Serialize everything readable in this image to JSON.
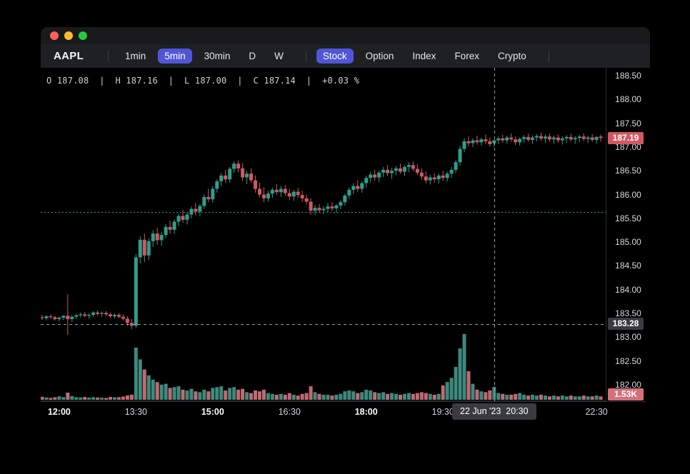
{
  "toolbar": {
    "symbol": "AAPL",
    "timeframes": [
      "1min",
      "5min",
      "30min",
      "D",
      "W"
    ],
    "active_timeframe": "5min",
    "markets": [
      "Stock",
      "Option",
      "Index",
      "Forex",
      "Crypto"
    ],
    "active_market": "Stock",
    "accent_color": "#5056d6"
  },
  "ohlc_bar": {
    "open_label": "O",
    "open": "187.08",
    "high_label": "H",
    "high": "187.16",
    "low_label": "L",
    "low": "187.00",
    "close_label": "C",
    "close": "187.14",
    "change_pct": "+0.03 %"
  },
  "price_axis": {
    "ticks": [
      "188.50",
      "188.00",
      "187.50",
      "187.00",
      "186.50",
      "186.00",
      "185.50",
      "185.00",
      "184.50",
      "184.00",
      "183.50",
      "183.00",
      "182.50",
      "182.00"
    ],
    "last_price_badge": {
      "value": "187.19",
      "color": "#d15862"
    },
    "crosshair_badge": {
      "value": "183.28",
      "color": "#3a3b40"
    },
    "volume_badge": {
      "value": "1.53K",
      "color": "#d3707a"
    }
  },
  "time_axis": {
    "ticks": [
      {
        "label": "12:00",
        "index": 4,
        "bold": true
      },
      {
        "label": "13:30",
        "index": 22,
        "bold": false
      },
      {
        "label": "15:00",
        "index": 40,
        "bold": true
      },
      {
        "label": "16:30",
        "index": 58,
        "bold": false
      },
      {
        "label": "18:00",
        "index": 76,
        "bold": true
      },
      {
        "label": "19:30",
        "index": 94,
        "bold": false
      },
      {
        "label": "22:30",
        "index": 130,
        "bold": false
      }
    ],
    "crosshair_badge": "22 Jun '23  20:30"
  },
  "chart_data": {
    "type": "candlestick_with_volume",
    "symbol": "AAPL",
    "interval": "5min",
    "title": "AAPL 5min candlestick chart, 22 Jun '23",
    "start_time": "11:40",
    "step_minutes": 5,
    "yaxis": {
      "min": 182.0,
      "max": 188.5,
      "tick_step": 0.5
    },
    "volume_axis_max_k": 7.8,
    "colors": {
      "up": "#2f9e8c",
      "down": "#d15862",
      "volume_up": "#3e8a7d",
      "volume_down": "#c06a72",
      "prev_close_line": "#2f9e8c",
      "crosshair": "#9aa0a6"
    },
    "prev_close_line_price": 185.63,
    "last_price": 187.19,
    "crosshair": {
      "index": 106,
      "time": "20:30",
      "price": 183.28,
      "volume_k": 1.53
    },
    "grid": false,
    "candles_format": [
      "open",
      "high",
      "low",
      "close",
      "volume_k"
    ],
    "candles": [
      [
        183.42,
        183.47,
        183.36,
        183.4,
        0.35
      ],
      [
        183.4,
        183.46,
        183.35,
        183.44,
        0.28
      ],
      [
        183.44,
        183.48,
        183.39,
        183.42,
        0.22
      ],
      [
        183.42,
        183.45,
        183.35,
        183.38,
        0.3
      ],
      [
        183.38,
        183.44,
        183.33,
        183.41,
        0.4
      ],
      [
        183.41,
        183.47,
        183.36,
        183.45,
        0.32
      ],
      [
        183.45,
        183.9,
        183.05,
        183.38,
        0.85
      ],
      [
        183.38,
        183.46,
        183.32,
        183.43,
        0.45
      ],
      [
        183.43,
        183.49,
        183.38,
        183.46,
        0.3
      ],
      [
        183.46,
        183.52,
        183.41,
        183.48,
        0.28
      ],
      [
        183.48,
        183.53,
        183.42,
        183.45,
        0.33
      ],
      [
        183.45,
        183.5,
        183.39,
        183.47,
        0.26
      ],
      [
        183.47,
        183.55,
        183.42,
        183.52,
        0.31
      ],
      [
        183.52,
        183.56,
        183.45,
        183.49,
        0.27
      ],
      [
        183.49,
        183.54,
        183.43,
        183.51,
        0.24
      ],
      [
        183.51,
        183.55,
        183.45,
        183.48,
        0.22
      ],
      [
        183.48,
        183.52,
        183.41,
        183.44,
        0.35
      ],
      [
        183.44,
        183.5,
        183.39,
        183.47,
        0.29
      ],
      [
        183.47,
        183.51,
        183.4,
        183.43,
        0.31
      ],
      [
        183.43,
        183.48,
        183.35,
        183.39,
        0.38
      ],
      [
        183.39,
        183.44,
        183.24,
        183.3,
        0.52
      ],
      [
        183.3,
        183.38,
        183.17,
        183.24,
        0.6
      ],
      [
        183.24,
        184.75,
        183.2,
        184.68,
        6.2
      ],
      [
        184.68,
        185.12,
        184.55,
        185.05,
        4.8
      ],
      [
        185.05,
        185.18,
        184.58,
        184.72,
        3.6
      ],
      [
        184.72,
        185.08,
        184.62,
        185.02,
        2.9
      ],
      [
        185.02,
        185.25,
        184.9,
        185.18,
        2.4
      ],
      [
        185.18,
        185.3,
        184.94,
        185.04,
        2.1
      ],
      [
        185.04,
        185.22,
        184.92,
        185.15,
        1.8
      ],
      [
        185.15,
        185.38,
        185.08,
        185.32,
        1.9
      ],
      [
        185.32,
        185.45,
        185.18,
        185.26,
        1.4
      ],
      [
        185.26,
        185.48,
        185.17,
        185.43,
        1.5
      ],
      [
        185.43,
        185.6,
        185.34,
        185.55,
        1.6
      ],
      [
        185.55,
        185.68,
        185.4,
        185.47,
        1.2
      ],
      [
        185.47,
        185.62,
        185.37,
        185.58,
        1.1
      ],
      [
        185.58,
        185.75,
        185.5,
        185.7,
        1.3
      ],
      [
        185.7,
        185.82,
        185.56,
        185.64,
        1.0
      ],
      [
        185.64,
        185.8,
        185.54,
        185.76,
        0.9
      ],
      [
        185.76,
        186.0,
        185.7,
        185.95,
        1.2
      ],
      [
        185.95,
        186.12,
        185.84,
        185.9,
        1.0
      ],
      [
        185.9,
        186.18,
        185.83,
        186.12,
        1.4
      ],
      [
        186.12,
        186.32,
        186.04,
        186.28,
        1.5
      ],
      [
        186.28,
        186.45,
        186.18,
        186.4,
        1.6
      ],
      [
        186.4,
        186.52,
        186.24,
        186.32,
        1.1
      ],
      [
        186.32,
        186.58,
        186.25,
        186.54,
        1.4
      ],
      [
        186.54,
        186.7,
        186.46,
        186.65,
        1.5
      ],
      [
        186.65,
        186.72,
        186.47,
        186.55,
        1.2
      ],
      [
        186.55,
        186.66,
        186.28,
        186.36,
        1.3
      ],
      [
        186.36,
        186.5,
        186.22,
        186.44,
        0.9
      ],
      [
        186.44,
        186.55,
        186.24,
        186.3,
        0.8
      ],
      [
        186.3,
        186.4,
        186.04,
        186.12,
        1.1
      ],
      [
        186.12,
        186.25,
        185.94,
        186.0,
        1.0
      ],
      [
        186.0,
        186.15,
        185.84,
        185.92,
        1.2
      ],
      [
        185.92,
        186.08,
        185.85,
        186.02,
        0.8
      ],
      [
        186.02,
        186.15,
        185.93,
        186.1,
        0.7
      ],
      [
        186.1,
        186.22,
        185.99,
        186.05,
        0.6
      ],
      [
        186.05,
        186.18,
        185.95,
        186.12,
        0.7
      ],
      [
        186.12,
        186.2,
        185.97,
        186.03,
        0.6
      ],
      [
        186.03,
        186.12,
        185.89,
        185.96,
        0.8
      ],
      [
        185.96,
        186.1,
        185.87,
        186.06,
        0.6
      ],
      [
        186.06,
        186.14,
        185.93,
        185.99,
        0.5
      ],
      [
        185.99,
        186.08,
        185.85,
        185.92,
        0.7
      ],
      [
        185.92,
        186.0,
        185.79,
        185.85,
        0.8
      ],
      [
        185.85,
        185.92,
        185.58,
        185.66,
        1.6
      ],
      [
        185.66,
        185.78,
        185.57,
        185.72,
        0.9
      ],
      [
        185.72,
        185.8,
        185.61,
        185.67,
        0.7
      ],
      [
        185.67,
        185.76,
        185.59,
        185.7,
        0.6
      ],
      [
        185.7,
        185.82,
        185.63,
        185.75,
        0.6
      ],
      [
        185.75,
        185.84,
        185.65,
        185.71,
        0.5
      ],
      [
        185.71,
        185.8,
        185.62,
        185.77,
        0.6
      ],
      [
        185.77,
        185.88,
        185.69,
        185.84,
        0.7
      ],
      [
        185.84,
        186.02,
        185.77,
        185.98,
        1.0
      ],
      [
        185.98,
        186.15,
        185.91,
        186.1,
        1.1
      ],
      [
        186.1,
        186.24,
        186.01,
        186.18,
        1.0
      ],
      [
        186.18,
        186.3,
        186.06,
        186.12,
        0.8
      ],
      [
        186.12,
        186.28,
        186.04,
        186.24,
        0.9
      ],
      [
        186.24,
        186.4,
        186.15,
        186.35,
        1.2
      ],
      [
        186.35,
        186.48,
        186.25,
        186.42,
        1.1
      ],
      [
        186.42,
        186.52,
        186.29,
        186.36,
        0.9
      ],
      [
        186.36,
        186.5,
        186.27,
        186.46,
        0.8
      ],
      [
        186.46,
        186.58,
        186.37,
        186.52,
        0.9
      ],
      [
        186.52,
        186.62,
        186.39,
        186.45,
        0.7
      ],
      [
        186.45,
        186.56,
        186.33,
        186.5,
        0.8
      ],
      [
        186.5,
        186.6,
        186.41,
        186.55,
        0.7
      ],
      [
        186.55,
        186.65,
        186.44,
        186.48,
        0.6
      ],
      [
        186.48,
        186.62,
        186.39,
        186.58,
        0.7
      ],
      [
        186.58,
        186.68,
        186.47,
        186.62,
        0.8
      ],
      [
        186.62,
        186.7,
        186.49,
        186.54,
        0.7
      ],
      [
        186.54,
        186.64,
        186.41,
        186.46,
        0.8
      ],
      [
        186.46,
        186.55,
        186.31,
        186.38,
        0.9
      ],
      [
        186.38,
        186.48,
        186.24,
        186.3,
        0.8
      ],
      [
        186.3,
        186.42,
        186.21,
        186.36,
        0.7
      ],
      [
        186.36,
        186.45,
        186.25,
        186.32,
        0.6
      ],
      [
        186.32,
        186.44,
        186.23,
        186.4,
        0.7
      ],
      [
        186.4,
        186.5,
        186.29,
        186.35,
        1.7
      ],
      [
        186.35,
        186.48,
        186.27,
        186.44,
        2.1
      ],
      [
        186.44,
        186.58,
        186.35,
        186.52,
        2.6
      ],
      [
        186.52,
        186.72,
        186.45,
        186.68,
        3.9
      ],
      [
        186.68,
        187.02,
        186.61,
        186.96,
        6.1
      ],
      [
        186.96,
        187.18,
        186.89,
        187.12,
        7.8
      ],
      [
        187.12,
        187.22,
        187.01,
        187.08,
        3.4
      ],
      [
        187.08,
        187.18,
        187.0,
        187.14,
        1.9
      ],
      [
        187.14,
        187.24,
        187.05,
        187.1,
        1.2
      ],
      [
        187.1,
        187.2,
        187.03,
        187.16,
        1.0
      ],
      [
        187.16,
        187.26,
        187.07,
        187.12,
        0.9
      ],
      [
        187.12,
        187.2,
        187.01,
        187.06,
        1.1
      ],
      [
        187.08,
        187.16,
        187.0,
        187.14,
        1.53
      ],
      [
        187.14,
        187.22,
        187.06,
        187.18,
        0.8
      ],
      [
        187.18,
        187.26,
        187.09,
        187.14,
        0.7
      ],
      [
        187.14,
        187.24,
        187.07,
        187.2,
        0.6
      ],
      [
        187.2,
        187.28,
        187.11,
        187.16,
        0.6
      ],
      [
        187.16,
        187.22,
        187.04,
        187.1,
        0.7
      ],
      [
        187.1,
        187.2,
        187.03,
        187.17,
        0.8
      ],
      [
        187.17,
        187.25,
        187.09,
        187.21,
        0.6
      ],
      [
        187.21,
        187.28,
        187.11,
        187.15,
        0.5
      ],
      [
        187.15,
        187.24,
        187.07,
        187.2,
        0.6
      ],
      [
        187.2,
        187.27,
        187.12,
        187.23,
        0.5
      ],
      [
        187.23,
        187.3,
        187.13,
        187.18,
        0.6
      ],
      [
        187.18,
        187.26,
        187.09,
        187.22,
        0.5
      ],
      [
        187.22,
        187.28,
        187.11,
        187.16,
        0.4
      ],
      [
        187.16,
        187.24,
        187.07,
        187.2,
        0.5
      ],
      [
        187.2,
        187.26,
        187.09,
        187.14,
        0.4
      ],
      [
        187.14,
        187.22,
        187.05,
        187.18,
        0.5
      ],
      [
        187.18,
        187.25,
        187.09,
        187.21,
        0.4
      ],
      [
        187.21,
        187.28,
        187.12,
        187.16,
        0.5
      ],
      [
        187.16,
        187.23,
        187.07,
        187.19,
        0.4
      ],
      [
        187.19,
        187.26,
        187.1,
        187.22,
        0.4
      ],
      [
        187.22,
        187.29,
        187.13,
        187.17,
        0.5
      ],
      [
        187.17,
        187.24,
        187.08,
        187.2,
        0.4
      ],
      [
        187.2,
        187.27,
        187.11,
        187.15,
        0.4
      ],
      [
        187.15,
        187.23,
        187.07,
        187.21,
        0.5
      ],
      [
        187.22,
        187.26,
        187.11,
        187.19,
        0.4
      ]
    ]
  }
}
